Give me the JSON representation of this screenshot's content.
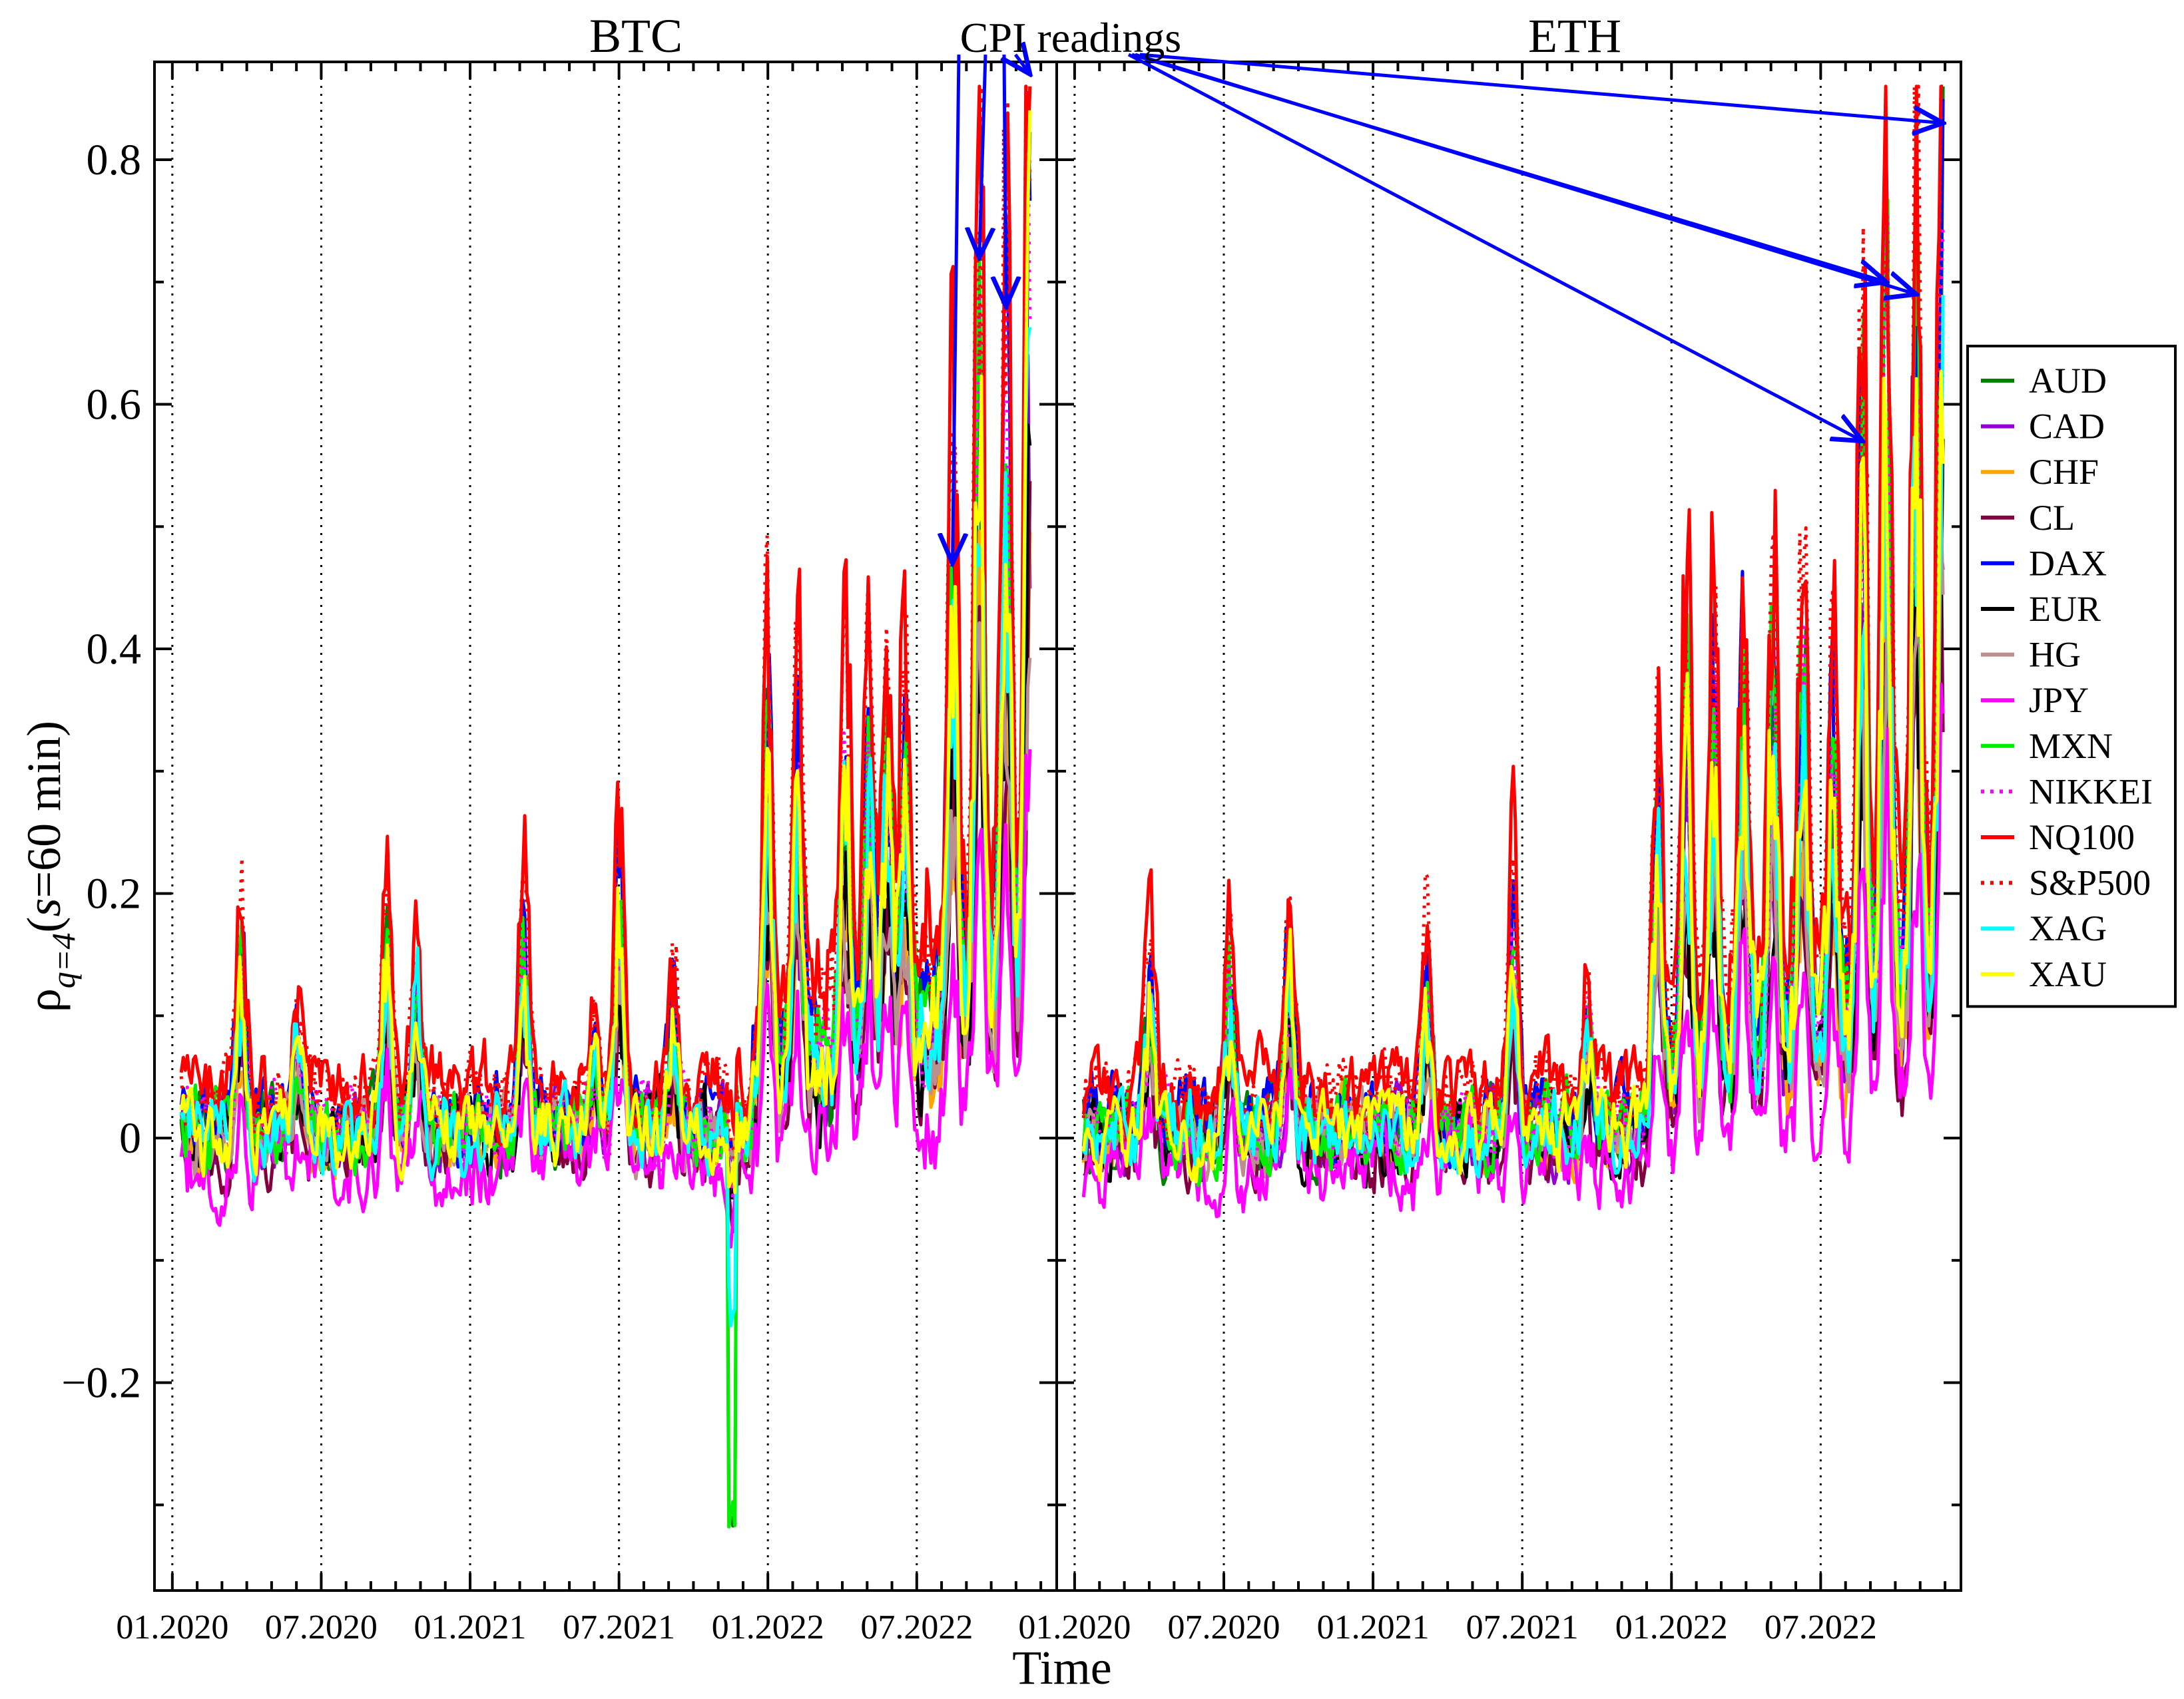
{
  "chart_data": {
    "type": "line",
    "ylabel": {
      "base": "ρ",
      "sub": "q=4",
      "rest": "(",
      "s": "s",
      "tail": "=60 min)"
    },
    "xlabel": "Time",
    "ylim": [
      -0.37,
      0.88
    ],
    "yticks": [
      -0.2,
      0,
      0.2,
      0.4,
      0.6,
      0.8
    ],
    "ytick_labels": [
      "−0.2",
      "0",
      "0.2",
      "0.4",
      "0.6",
      "0.8"
    ],
    "yminor_step": 0.1,
    "grid": "vertical dotted lines at half-year boundaries",
    "legend_position": "right, outside plot",
    "annotation": {
      "text": "CPI readings",
      "color": "#0000ff",
      "targets": [
        {
          "panel": 0,
          "x": 2022.62,
          "y": 0.47
        },
        {
          "panel": 0,
          "x": 2022.71,
          "y": 0.72
        },
        {
          "panel": 0,
          "x": 2022.8,
          "y": 0.68
        },
        {
          "panel": 0,
          "x": 2022.88,
          "y": 0.87
        },
        {
          "panel": 1,
          "x": 2022.64,
          "y": 0.57
        },
        {
          "panel": 1,
          "x": 2022.72,
          "y": 0.7
        },
        {
          "panel": 1,
          "x": 2022.82,
          "y": 0.69
        },
        {
          "panel": 1,
          "x": 2022.91,
          "y": 0.83
        }
      ]
    },
    "panels": [
      {
        "title": "BTC",
        "xlim": [
          2019.94,
          2022.97
        ],
        "end": 2022.88,
        "xtick_values": [
          2020.0,
          2020.5,
          2021.0,
          2021.5,
          2022.0,
          2022.5
        ],
        "xtick_labels": [
          "01.2020",
          "07.2020",
          "01.2021",
          "07.2021",
          "01.2022",
          "07.2022"
        ]
      },
      {
        "title": "ETH",
        "xlim": [
          2019.94,
          2022.97
        ],
        "end": 2022.91,
        "xtick_values": [
          2020.0,
          2020.5,
          2021.0,
          2021.5,
          2022.0,
          2022.5
        ],
        "xtick_labels": [
          "01.2020",
          "07.2020",
          "01.2021",
          "07.2021",
          "01.2022",
          "07.2022"
        ]
      }
    ],
    "series": [
      {
        "name": "AUD",
        "color": "#008000",
        "dash": "solid",
        "amp": 0.75,
        "bias": 0.0
      },
      {
        "name": "CAD",
        "color": "#9400d3",
        "dash": "solid",
        "amp": 0.55,
        "bias": 0.0
      },
      {
        "name": "CHF",
        "color": "#ffa500",
        "dash": "solid",
        "amp": 0.5,
        "bias": 0.0
      },
      {
        "name": "CL",
        "color": "#800040",
        "dash": "solid",
        "amp": 0.45,
        "bias": -0.01
      },
      {
        "name": "DAX",
        "color": "#0000ff",
        "dash": "solid",
        "amp": 0.85,
        "bias": 0.01
      },
      {
        "name": "EUR",
        "color": "#000000",
        "dash": "solid",
        "amp": 0.5,
        "bias": 0.0
      },
      {
        "name": "HG",
        "color": "#bc8f8f",
        "dash": "solid",
        "amp": 0.5,
        "bias": 0.0
      },
      {
        "name": "JPY",
        "color": "#ff00ff",
        "dash": "solid",
        "amp": 0.35,
        "bias": -0.03
      },
      {
        "name": "MXN",
        "color": "#00ee00",
        "dash": "solid",
        "amp": 0.8,
        "bias": 0.0
      },
      {
        "name": "NIKKEI",
        "color": "#ff00ff",
        "dash": "dot",
        "amp": 0.75,
        "bias": 0.0
      },
      {
        "name": "NQ100",
        "color": "#ff0000",
        "dash": "solid",
        "amp": 1.0,
        "bias": 0.03
      },
      {
        "name": "S&P500",
        "color": "#ff0000",
        "dash": "dot",
        "amp": 0.95,
        "bias": 0.025
      },
      {
        "name": "XAG",
        "color": "#00ffff",
        "dash": "solid",
        "amp": 0.65,
        "bias": 0.0
      },
      {
        "name": "XAU",
        "color": "#ffff00",
        "dash": "solid",
        "amp": 0.7,
        "bias": 0.0
      }
    ]
  }
}
